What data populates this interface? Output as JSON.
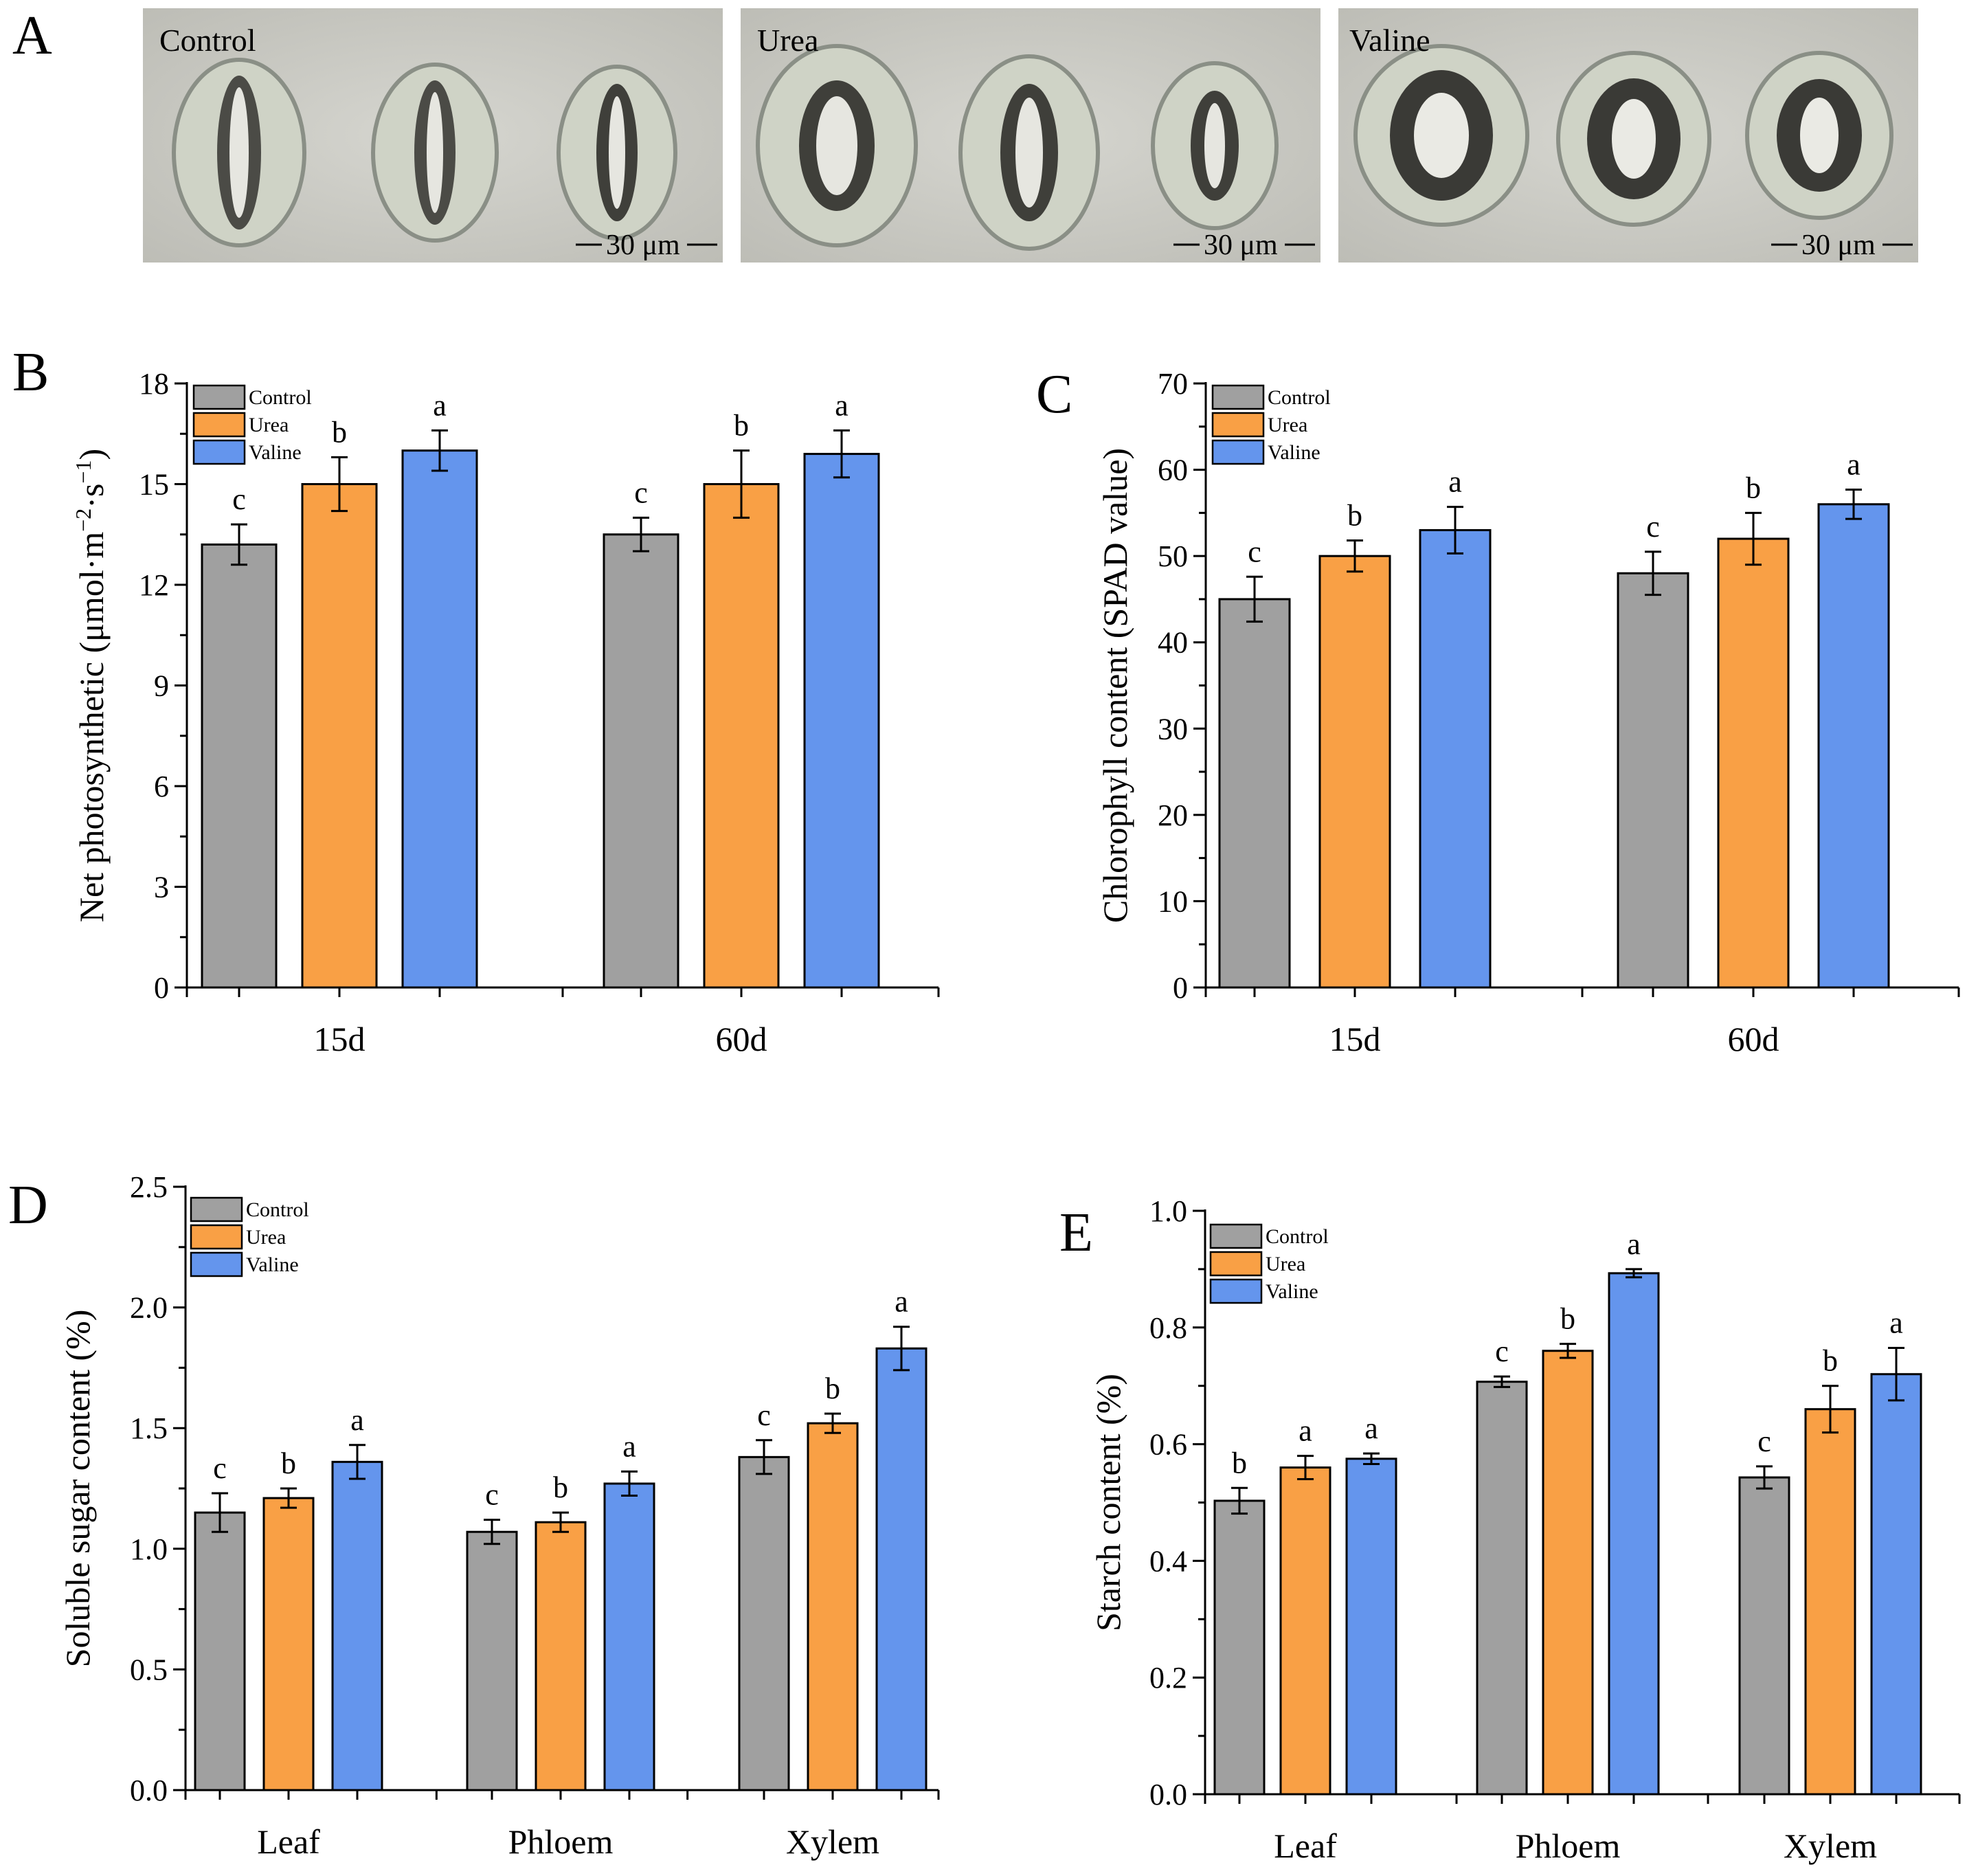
{
  "panel_a": {
    "letter": "A",
    "images": [
      {
        "label": "Control",
        "scale_text": "30 μm"
      },
      {
        "label": "Urea",
        "scale_text": "30 μm"
      },
      {
        "label": "Valine",
        "scale_text": "30 μm"
      }
    ]
  },
  "colors": {
    "Control": "#a0a0a0",
    "Urea": "#f9a045",
    "Valine": "#6495ed"
  },
  "chart_data": [
    {
      "id": "B",
      "type": "bar",
      "ylabel": "Net photosynthetic (μmol·m−2·s−1)",
      "ylabel_parts": [
        "Net photosynthetic (μmol·m",
        "−2",
        "·s",
        "−1",
        ")"
      ],
      "ylim": [
        0,
        18
      ],
      "yticks": [
        0,
        3,
        6,
        9,
        12,
        15,
        18
      ],
      "decimals": 0,
      "categories": [
        "15d",
        "60d"
      ],
      "series": [
        {
          "name": "Control",
          "values": [
            13.2,
            13.5
          ],
          "errors": [
            0.6,
            0.5
          ],
          "letters": [
            "c",
            "c"
          ]
        },
        {
          "name": "Urea",
          "values": [
            15.0,
            15.0
          ],
          "errors": [
            0.8,
            1.0
          ],
          "letters": [
            "b",
            "b"
          ]
        },
        {
          "name": "Valine",
          "values": [
            16.0,
            15.9
          ],
          "errors": [
            0.6,
            0.7
          ],
          "letters": [
            "a",
            "a"
          ]
        }
      ],
      "legend": [
        "Control",
        "Urea",
        "Valine"
      ]
    },
    {
      "id": "C",
      "type": "bar",
      "ylabel": "Chlorophyll content (SPAD value)",
      "ylim": [
        0,
        70
      ],
      "yticks": [
        0,
        10,
        20,
        30,
        40,
        50,
        60,
        70
      ],
      "decimals": 0,
      "categories": [
        "15d",
        "60d"
      ],
      "series": [
        {
          "name": "Control",
          "values": [
            45.0,
            48.0
          ],
          "errors": [
            2.6,
            2.5
          ],
          "letters": [
            "c",
            "c"
          ]
        },
        {
          "name": "Urea",
          "values": [
            50.0,
            52.0
          ],
          "errors": [
            1.8,
            3.0
          ],
          "letters": [
            "b",
            "b"
          ]
        },
        {
          "name": "Valine",
          "values": [
            53.0,
            56.0
          ],
          "errors": [
            2.7,
            1.7
          ],
          "letters": [
            "a",
            "a"
          ]
        }
      ],
      "legend": [
        "Control",
        "Urea",
        "Valine"
      ]
    },
    {
      "id": "D",
      "type": "bar",
      "ylabel": "Soluble sugar content  (%)",
      "ylim": [
        0,
        2.5
      ],
      "yticks": [
        0.0,
        0.5,
        1.0,
        1.5,
        2.0,
        2.5
      ],
      "decimals": 1,
      "categories": [
        "Leaf",
        "Phloem",
        "Xylem"
      ],
      "series": [
        {
          "name": "Control",
          "values": [
            1.15,
            1.07,
            1.38
          ],
          "errors": [
            0.08,
            0.05,
            0.07
          ],
          "letters": [
            "c",
            "c",
            "c"
          ]
        },
        {
          "name": "Urea",
          "values": [
            1.21,
            1.11,
            1.52
          ],
          "errors": [
            0.04,
            0.04,
            0.04
          ],
          "letters": [
            "b",
            "b",
            "b"
          ]
        },
        {
          "name": "Valine",
          "values": [
            1.36,
            1.27,
            1.83
          ],
          "errors": [
            0.07,
            0.05,
            0.09
          ],
          "letters": [
            "a",
            "a",
            "a"
          ]
        }
      ],
      "legend": [
        "Control",
        "Urea",
        "Valine"
      ]
    },
    {
      "id": "E",
      "type": "bar",
      "ylabel": "Starch content  (%)",
      "ylim": [
        0,
        1.0
      ],
      "yticks": [
        0.0,
        0.2,
        0.4,
        0.6,
        0.8,
        1.0
      ],
      "decimals": 1,
      "categories": [
        "Leaf",
        "Phloem",
        "Xylem"
      ],
      "series": [
        {
          "name": "Control",
          "values": [
            0.503,
            0.707,
            0.543
          ],
          "errors": [
            0.022,
            0.009,
            0.019
          ],
          "letters": [
            "b",
            "c",
            "c"
          ]
        },
        {
          "name": "Urea",
          "values": [
            0.56,
            0.76,
            0.66
          ],
          "errors": [
            0.02,
            0.012,
            0.04
          ],
          "letters": [
            "a",
            "b",
            "b"
          ]
        },
        {
          "name": "Valine",
          "values": [
            0.575,
            0.893,
            0.72
          ],
          "errors": [
            0.009,
            0.007,
            0.045
          ],
          "letters": [
            "a",
            "a",
            "a"
          ]
        }
      ],
      "legend": [
        "Control",
        "Urea",
        "Valine"
      ]
    }
  ]
}
